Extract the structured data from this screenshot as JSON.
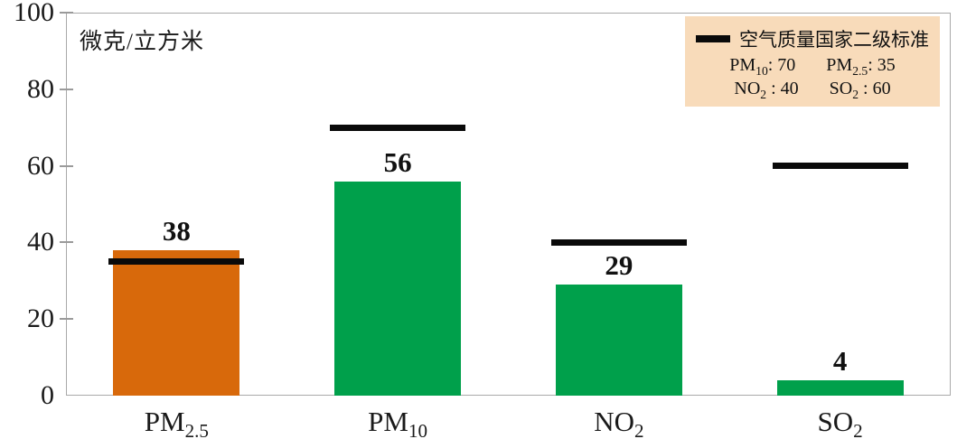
{
  "chart_data": {
    "type": "bar",
    "unit_label": "微克/立方米",
    "categories": [
      {
        "label": "PM2.5",
        "base": "PM",
        "sub": "2.5"
      },
      {
        "label": "PM10",
        "base": "PM",
        "sub": "10"
      },
      {
        "label": "NO2",
        "base": "NO",
        "sub": "2"
      },
      {
        "label": "SO2",
        "base": "SO",
        "sub": "2"
      }
    ],
    "values": [
      38,
      56,
      29,
      4
    ],
    "standard_values": [
      35,
      70,
      40,
      60
    ],
    "bar_colors": [
      "#D8690B",
      "#00A04B",
      "#00A04B",
      "#00A04B"
    ],
    "ylim": [
      0,
      100
    ],
    "yticks": [
      0,
      20,
      40,
      60,
      80,
      100
    ],
    "grid": false,
    "legend": {
      "position": "top-right",
      "title": "空气质量国家二级标准",
      "entries": [
        {
          "base": "PM",
          "sub": "10",
          "suffix": ": 70"
        },
        {
          "base": "PM",
          "sub": "2.5",
          "suffix": ": 35"
        },
        {
          "base": "NO",
          "sub": "2",
          "suffix": " : 40"
        },
        {
          "base": "SO",
          "sub": "2",
          "suffix": " : 60"
        }
      ]
    },
    "colors": {
      "standard_line": "#0a0a0a",
      "legend_background": "#F8DBBA",
      "axis_frame": "#a9a9a9",
      "text": "#1a1a1a"
    }
  }
}
